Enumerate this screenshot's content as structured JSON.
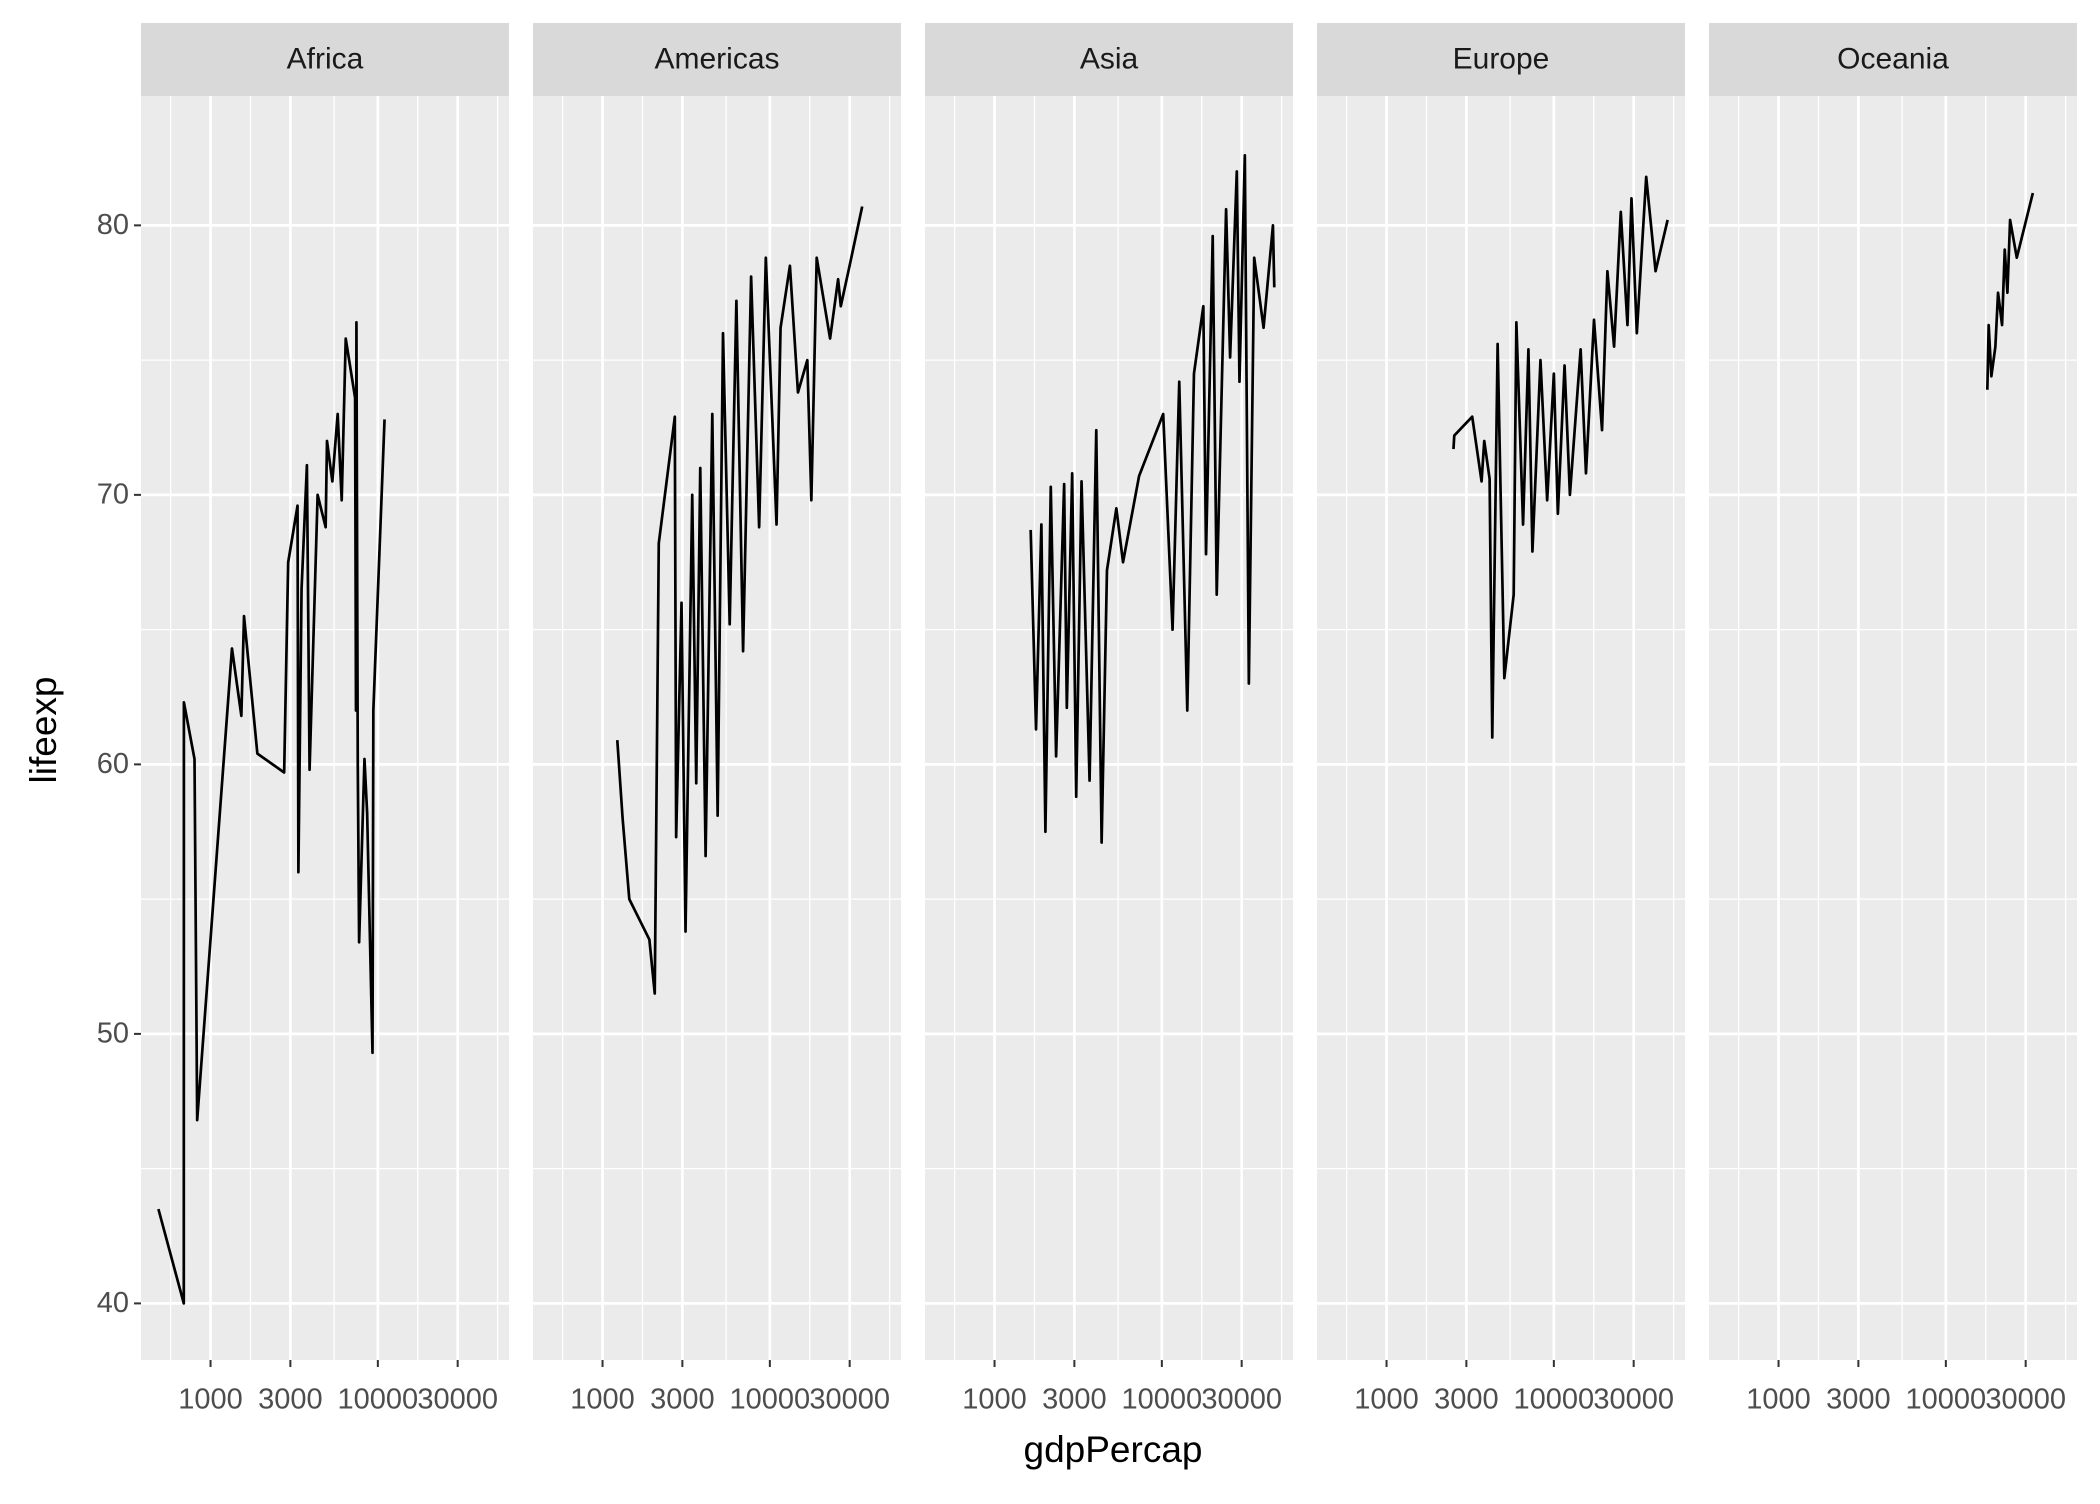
{
  "chart_data": {
    "type": "line",
    "xlabel": "gdpPercap",
    "ylabel": "lifeexp",
    "log_x": true,
    "grid": true,
    "color": "#000000",
    "xlim": [
      384,
      60800
    ],
    "xticks": [
      1000,
      3000,
      10000,
      30000
    ],
    "ylim": [
      37.9,
      84.8
    ],
    "yticks": [
      40,
      50,
      60,
      70,
      80
    ],
    "panels": [
      {
        "title": "Africa",
        "x": [
          488,
          692,
          693,
          802,
          832,
          1343,
          1528,
          1585,
          1905,
          2754,
          2911,
          3311,
          3350,
          3499,
          3767,
          3908,
          4365,
          4875,
          4966,
          5346,
          5754,
          6081,
          6427,
          7311,
          7400,
          7447,
          7586,
          7727,
          8318,
          8630,
          9290,
          9400,
          10965
        ],
        "values": [
          43.5,
          40,
          62.3,
          60.2,
          46.8,
          64.3,
          61.8,
          65.5,
          60.4,
          59.7,
          67.5,
          69.6,
          56,
          66.5,
          71.1,
          59.8,
          70,
          68.8,
          72,
          70.5,
          73,
          69.8,
          75.8,
          73.6,
          62,
          76.4,
          60,
          53.4,
          60.2,
          58.2,
          49.3,
          62,
          72.8
        ]
      },
      {
        "title": "Americas",
        "x": [
          1225,
          1318,
          1445,
          1905,
          2051,
          2168,
          2704,
          2754,
          2965,
          3133,
          3436,
          3631,
          3837,
          4130,
          4529,
          4875,
          5248,
          5754,
          6310,
          6918,
          7727,
          8630,
          9462,
          10965,
          11588,
          13183,
          14723,
          16749,
          17701,
          19055,
          22909,
          25586,
          26546,
          30200,
          35645
        ],
        "values": [
          60.9,
          58,
          55,
          53.5,
          51.5,
          68.2,
          72.9,
          57.3,
          66,
          53.8,
          70,
          59.3,
          71,
          56.6,
          73,
          58.1,
          76,
          65.2,
          77.2,
          64.2,
          78.1,
          68.8,
          78.8,
          68.9,
          76.2,
          78.5,
          73.8,
          75,
          69.8,
          78.8,
          75.8,
          78,
          77,
          78.6,
          80.7
        ]
      },
      {
        "title": "Asia",
        "x": [
          1644,
          1770,
          1905,
          2014,
          2168,
          2333,
          2606,
          2704,
          2911,
          3076,
          3311,
          3698,
          4055,
          4365,
          4699,
          5346,
          5861,
          7311,
          10186,
          11588,
          12706,
          14191,
          15560,
          17701,
          18365,
          20137,
          21281,
          24210,
          25586,
          28054,
          29107,
          31333,
          33113,
          35645,
          40551,
          46132,
          46989
        ],
        "values": [
          68.7,
          61.3,
          68.9,
          57.5,
          70.3,
          60.3,
          70.4,
          62.1,
          70.8,
          58.8,
          70.5,
          59.4,
          72.4,
          57.1,
          67.2,
          69.5,
          67.5,
          70.7,
          73,
          65,
          74.2,
          62,
          74.5,
          77,
          67.8,
          79.6,
          66.3,
          80.6,
          75.1,
          82,
          74.2,
          82.6,
          63,
          78.8,
          76.2,
          80,
          77.7
        ]
      },
      {
        "title": "Europe",
        "x": [
          2512,
          2540,
          3251,
          3698,
          3837,
          4130,
          4285,
          4613,
          5058,
          5754,
          5970,
          6546,
          7047,
          7447,
          8318,
          9120,
          10000,
          10568,
          11588,
          12474,
          14454,
          15560,
          17378,
          19409,
          20893,
          22909,
          25119,
          27542,
          29107,
          31333,
          35645,
          40551,
          47863
        ],
        "values": [
          71.7,
          72.2,
          72.9,
          70.5,
          72,
          70.6,
          61,
          75.6,
          63.2,
          66.3,
          76.4,
          68.9,
          75.4,
          67.9,
          75,
          69.8,
          74.5,
          69.3,
          74.8,
          70,
          75.4,
          70.8,
          76.5,
          72.4,
          78.3,
          75.5,
          80.5,
          76.3,
          81,
          76,
          81.8,
          78.3,
          80.2
        ]
      },
      {
        "title": "Oceania",
        "x": [
          17701,
          18030,
          18707,
          19770,
          20512,
          21677,
          22491,
          23335,
          24210,
          26546,
          33113
        ],
        "values": [
          73.9,
          76.3,
          74.4,
          75.5,
          77.5,
          76.3,
          79.1,
          77.5,
          80.2,
          78.8,
          81.2
        ]
      }
    ]
  }
}
